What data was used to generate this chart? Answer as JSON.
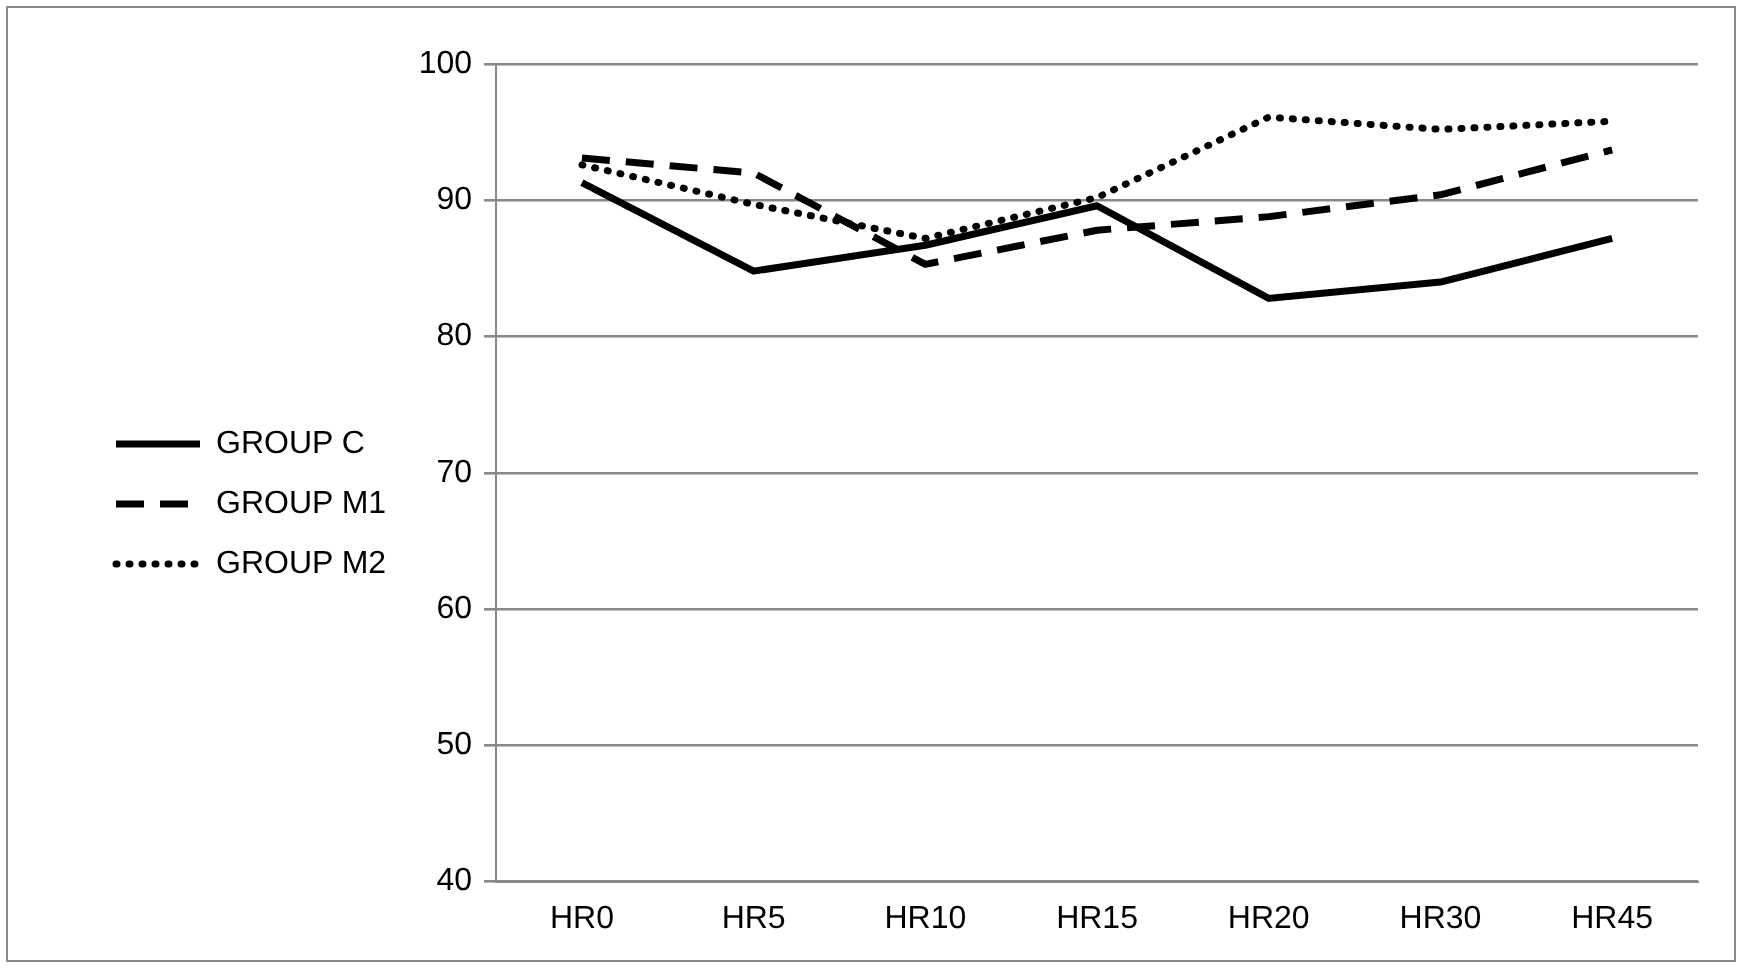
{
  "chart_data": {
    "type": "line",
    "categories": [
      "HR0",
      "HR5",
      "HR10",
      "HR15",
      "HR20",
      "HR30",
      "HR45"
    ],
    "series": [
      {
        "name": "GROUP C",
        "color": "#000000",
        "line_style": "solid",
        "values": [
          91.3,
          84.8,
          86.7,
          89.6,
          82.8,
          84.0,
          87.2
        ]
      },
      {
        "name": "GROUP M1",
        "color": "#000000",
        "line_style": "dashed",
        "values": [
          93.1,
          92.0,
          85.3,
          87.8,
          88.8,
          90.4,
          93.7
        ]
      },
      {
        "name": "GROUP M2",
        "color": "#000000",
        "line_style": "dotted",
        "values": [
          92.6,
          89.7,
          87.2,
          90.2,
          96.1,
          95.2,
          95.8
        ]
      }
    ],
    "ylim": [
      40,
      100
    ],
    "yticks": [
      40,
      50,
      60,
      70,
      80,
      90,
      100
    ],
    "grid": "y",
    "legend": "left",
    "marker": "none"
  }
}
